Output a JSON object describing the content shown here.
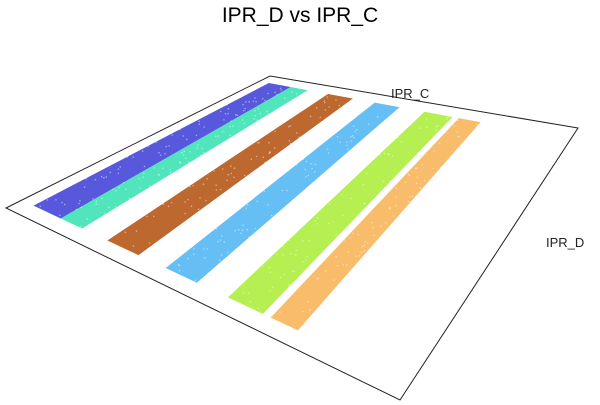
{
  "chart_data": {
    "type": "scatter",
    "view": "3d-perspective",
    "title": "IPR_D vs IPR_C",
    "xlabel": "IPR_C",
    "ylabel": "IPR_D",
    "grid": false,
    "legend": "none",
    "bands": [
      {
        "color": "#3b3bd6",
        "lo": 0.03,
        "hi": 0.1
      },
      {
        "color": "#33e0b0",
        "lo": 0.1,
        "hi": 0.155
      },
      {
        "color": "#b24e0a",
        "lo": 0.22,
        "hi": 0.3
      },
      {
        "color": "#4ab4f2",
        "lo": 0.37,
        "hi": 0.45
      },
      {
        "color": "#a8ec32",
        "lo": 0.53,
        "hi": 0.62
      },
      {
        "color": "#f8b050",
        "lo": 0.64,
        "hi": 0.71
      }
    ]
  }
}
